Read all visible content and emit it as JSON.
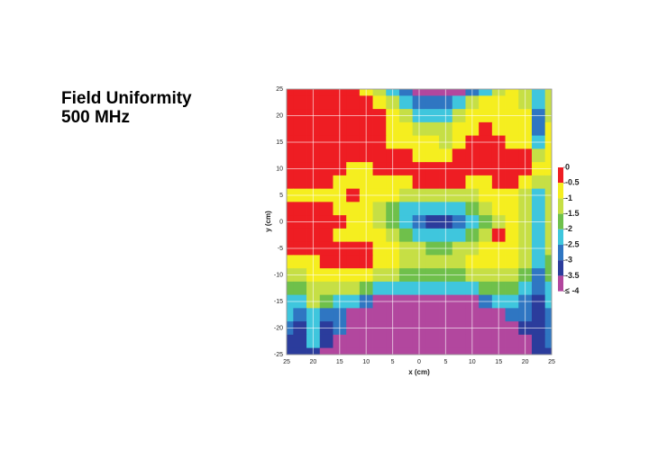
{
  "chart_data": {
    "type": "heatmap",
    "title": "Field Uniformity",
    "subtitle": "500 MHz",
    "x_label": "x (cm)",
    "y_label": "y (cm)",
    "x": [
      -25,
      -22.5,
      -20,
      -17.5,
      -15,
      -12.5,
      -10,
      -7.5,
      -5,
      -2.5,
      0,
      2.5,
      5,
      7.5,
      10,
      12.5,
      15,
      17.5,
      20,
      22.5,
      25
    ],
    "y": [
      25,
      22.5,
      20,
      17.5,
      15,
      12.5,
      10,
      7.5,
      5,
      2.5,
      0,
      -2.5,
      -5,
      -7.5,
      -10,
      -12.5,
      -15,
      -17.5,
      -20,
      -22.5,
      -25
    ],
    "values": [
      [
        -0.2,
        -0.2,
        -0.2,
        -0.2,
        -0.2,
        -0.2,
        -0.7,
        -1.2,
        -2.2,
        -2.7,
        -3.8,
        -3.8,
        -3.8,
        -3.8,
        -2.7,
        -2.2,
        -1.2,
        -0.7,
        -1.2,
        -2.2,
        -1.2
      ],
      [
        -0.2,
        -0.2,
        -0.2,
        -0.2,
        -0.2,
        -0.2,
        -0.2,
        -0.7,
        -1.2,
        -2.2,
        -2.7,
        -2.7,
        -2.7,
        -2.2,
        -1.2,
        -0.7,
        -0.7,
        -0.7,
        -1.2,
        -2.2,
        -1.2
      ],
      [
        -0.2,
        -0.2,
        -0.2,
        -0.2,
        -0.2,
        -0.2,
        -0.2,
        -0.2,
        -0.7,
        -1.2,
        -2.2,
        -2.2,
        -2.2,
        -1.2,
        -0.7,
        -0.7,
        -0.7,
        -0.7,
        -0.7,
        -2.7,
        -1.2
      ],
      [
        -0.2,
        -0.2,
        -0.2,
        -0.2,
        -0.2,
        -0.2,
        -0.2,
        -0.2,
        -0.7,
        -0.7,
        -1.2,
        -1.2,
        -1.2,
        -0.7,
        -0.7,
        -0.2,
        -0.7,
        -0.7,
        -0.7,
        -2.7,
        -0.7
      ],
      [
        -0.2,
        -0.2,
        -0.2,
        -0.2,
        -0.2,
        -0.2,
        -0.2,
        -0.2,
        -0.7,
        -0.7,
        -0.7,
        -0.7,
        -1.2,
        -0.7,
        -0.2,
        -0.2,
        -0.2,
        -0.7,
        -0.7,
        -2.2,
        -0.7
      ],
      [
        -0.2,
        -0.2,
        -0.2,
        -0.2,
        -0.2,
        -0.2,
        -0.2,
        -0.2,
        -0.2,
        -0.2,
        -0.7,
        -0.7,
        -0.7,
        -0.2,
        -0.2,
        -0.2,
        -0.2,
        -0.2,
        -0.2,
        -1.2,
        -0.7
      ],
      [
        -0.2,
        -0.2,
        -0.2,
        -0.2,
        -0.2,
        -0.7,
        -0.7,
        -0.2,
        -0.2,
        -0.2,
        -0.2,
        -0.2,
        -0.2,
        -0.2,
        -0.2,
        -0.2,
        -0.2,
        -0.2,
        -0.2,
        -0.7,
        -0.7
      ],
      [
        -0.2,
        -0.2,
        -0.2,
        -0.2,
        -0.7,
        -0.7,
        -0.7,
        -0.7,
        -0.7,
        -0.7,
        -0.2,
        -0.2,
        -0.2,
        -0.2,
        -0.7,
        -0.7,
        -0.2,
        -0.2,
        -0.7,
        -1.2,
        -1.2
      ],
      [
        -0.7,
        -0.7,
        -0.7,
        -0.7,
        -0.7,
        -0.2,
        -0.7,
        -0.7,
        -0.7,
        -1.2,
        -1.2,
        -1.2,
        -1.2,
        -1.2,
        -1.2,
        -0.7,
        -0.7,
        -0.7,
        -1.2,
        -2.2,
        -1.2
      ],
      [
        -0.2,
        -0.2,
        -0.2,
        -0.2,
        -0.7,
        -0.7,
        -0.7,
        -1.2,
        -1.7,
        -2.2,
        -2.2,
        -2.2,
        -2.2,
        -2.2,
        -1.7,
        -1.2,
        -0.7,
        -0.7,
        -1.2,
        -2.2,
        -1.2
      ],
      [
        -0.2,
        -0.2,
        -0.2,
        -0.2,
        -0.2,
        -0.7,
        -0.7,
        -1.2,
        -1.7,
        -2.2,
        -2.7,
        -3.2,
        -3.2,
        -2.7,
        -2.2,
        -1.7,
        -1.2,
        -0.7,
        -1.2,
        -2.2,
        -1.2
      ],
      [
        -0.2,
        -0.2,
        -0.2,
        -0.2,
        -0.7,
        -0.7,
        -0.7,
        -0.7,
        -1.2,
        -1.7,
        -2.2,
        -2.2,
        -2.2,
        -2.2,
        -1.7,
        -1.2,
        -0.2,
        -0.7,
        -1.2,
        -2.2,
        -1.2
      ],
      [
        -0.2,
        -0.2,
        -0.2,
        -0.2,
        -0.2,
        -0.2,
        -0.2,
        -0.7,
        -0.7,
        -1.2,
        -1.2,
        -1.7,
        -1.7,
        -1.2,
        -1.2,
        -0.7,
        -0.7,
        -0.7,
        -1.2,
        -2.2,
        -1.2
      ],
      [
        -0.7,
        -0.7,
        -0.7,
        -0.2,
        -0.2,
        -0.2,
        -0.2,
        -0.7,
        -0.7,
        -1.2,
        -1.2,
        -1.2,
        -1.2,
        -1.2,
        -0.7,
        -0.7,
        -0.7,
        -0.7,
        -1.2,
        -2.2,
        -1.7
      ],
      [
        -1.2,
        -1.2,
        -0.7,
        -0.7,
        -0.7,
        -0.7,
        -0.7,
        -1.2,
        -1.2,
        -1.7,
        -1.7,
        -1.7,
        -1.7,
        -1.7,
        -1.2,
        -1.2,
        -1.2,
        -1.2,
        -1.7,
        -2.7,
        -1.7
      ],
      [
        -1.7,
        -1.7,
        -1.2,
        -1.2,
        -1.2,
        -1.2,
        -1.7,
        -2.2,
        -2.2,
        -2.2,
        -2.2,
        -2.2,
        -2.2,
        -2.2,
        -2.2,
        -1.7,
        -1.7,
        -1.7,
        -2.2,
        -2.7,
        -2.2
      ],
      [
        -2.2,
        -2.2,
        -1.2,
        -1.7,
        -2.2,
        -2.2,
        -2.7,
        -3.8,
        -3.8,
        -3.8,
        -3.8,
        -3.8,
        -3.8,
        -3.8,
        -3.8,
        -2.7,
        -2.2,
        -2.2,
        -2.7,
        -3.2,
        -2.2
      ],
      [
        -2.2,
        -2.7,
        -2.2,
        -2.7,
        -2.7,
        -3.8,
        -3.8,
        -3.8,
        -3.8,
        -3.8,
        -3.8,
        -3.8,
        -3.8,
        -3.8,
        -3.8,
        -3.8,
        -3.8,
        -2.7,
        -2.7,
        -3.2,
        -2.7
      ],
      [
        -2.7,
        -3.2,
        -2.2,
        -3.2,
        -2.7,
        -3.8,
        -3.8,
        -3.8,
        -3.8,
        -3.8,
        -3.8,
        -3.8,
        -3.8,
        -3.8,
        -3.8,
        -3.8,
        -3.8,
        -3.8,
        -3.2,
        -3.2,
        -2.7
      ],
      [
        -3.2,
        -3.2,
        -2.2,
        -3.2,
        -3.8,
        -3.8,
        -3.8,
        -3.8,
        -3.8,
        -3.8,
        -3.8,
        -3.8,
        -3.8,
        -3.8,
        -3.8,
        -3.8,
        -3.8,
        -3.8,
        -3.8,
        -3.2,
        -2.7
      ],
      [
        -3.2,
        -3.2,
        -3.2,
        -3.8,
        -3.8,
        -3.8,
        -3.8,
        -3.8,
        -3.8,
        -3.8,
        -3.8,
        -3.8,
        -3.8,
        -3.8,
        -3.8,
        -3.8,
        -3.8,
        -3.8,
        -3.8,
        -3.2,
        -3.2
      ]
    ],
    "xlim": [
      -25,
      25
    ],
    "ylim": [
      -25,
      25
    ],
    "xticks": [
      {
        "value": -25,
        "label": "25"
      },
      {
        "value": -20,
        "label": "20"
      },
      {
        "value": -15,
        "label": "15"
      },
      {
        "value": -10,
        "label": "10"
      },
      {
        "value": -5,
        "label": "5"
      },
      0,
      5,
      10,
      15,
      20,
      25
    ],
    "yticks": [
      25,
      20,
      15,
      10,
      5,
      0,
      -5,
      -10,
      -15,
      -20,
      -25
    ],
    "grid": true,
    "colorbar": {
      "levels": [
        0,
        -0.5,
        -1,
        -1.5,
        -2,
        -2.5,
        -3,
        -3.5,
        {
          "value": -4,
          "label": "≤ -4"
        }
      ],
      "colors": [
        "#ee1d23",
        "#f5ee1f",
        "#c6df45",
        "#6fc04b",
        "#3fc6dd",
        "#2f76c2",
        "#2b3c9c",
        "#b2479e"
      ]
    }
  }
}
